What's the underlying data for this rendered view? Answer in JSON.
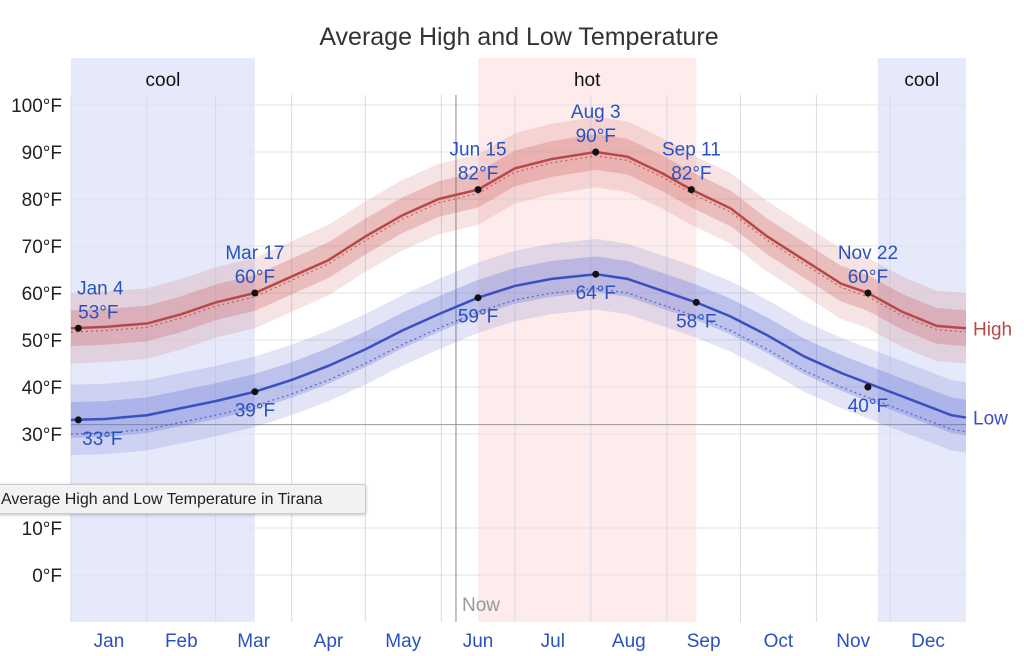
{
  "chart_data": {
    "type": "line",
    "title": "Average High and Low Temperature",
    "x_range_days": [
      1,
      366
    ],
    "ylim": [
      -10,
      110
    ],
    "y_ticks": [
      {
        "value": 100,
        "label": "100°F"
      },
      {
        "value": 90,
        "label": "90°F"
      },
      {
        "value": 80,
        "label": "80°F"
      },
      {
        "value": 70,
        "label": "70°F"
      },
      {
        "value": 60,
        "label": "60°F"
      },
      {
        "value": 50,
        "label": "50°F"
      },
      {
        "value": 40,
        "label": "40°F"
      },
      {
        "value": 30,
        "label": "30°F"
      },
      {
        "value": 10,
        "label": "10°F"
      },
      {
        "value": 0,
        "label": "0°F"
      }
    ],
    "months": [
      "Jan",
      "Feb",
      "Mar",
      "Apr",
      "May",
      "Jun",
      "Jul",
      "Aug",
      "Sep",
      "Oct",
      "Nov",
      "Dec"
    ],
    "seasons": [
      {
        "label": "cool",
        "start_day": 1,
        "end_day": 76,
        "color": "#e6e9fa"
      },
      {
        "label": "hot",
        "start_day": 167,
        "end_day": 256,
        "color": "#fdeceb"
      },
      {
        "label": "cool",
        "start_day": 330,
        "end_day": 366,
        "color": "#e6e9fa"
      }
    ],
    "now_day": 158,
    "now_label": "Now",
    "reference_line": 32,
    "series": [
      {
        "name": "High",
        "color": "#b84848",
        "band_color": "#c85050",
        "points": [
          [
            1,
            52.5
          ],
          [
            15,
            52.8
          ],
          [
            32,
            53.5
          ],
          [
            46,
            55.5
          ],
          [
            60,
            58
          ],
          [
            76,
            60
          ],
          [
            91,
            63.5
          ],
          [
            106,
            67
          ],
          [
            121,
            72
          ],
          [
            136,
            76.5
          ],
          [
            151,
            80
          ],
          [
            167,
            82
          ],
          [
            182,
            86.5
          ],
          [
            197,
            88.5
          ],
          [
            215,
            90
          ],
          [
            228,
            89
          ],
          [
            242,
            85.5
          ],
          [
            254,
            82
          ],
          [
            270,
            78
          ],
          [
            285,
            72
          ],
          [
            300,
            67
          ],
          [
            315,
            62
          ],
          [
            326,
            60
          ],
          [
            340,
            56
          ],
          [
            354,
            53
          ],
          [
            366,
            52.5
          ]
        ]
      },
      {
        "name": "Low",
        "color": "#3b4fc0",
        "band_color": "#5060d0",
        "points": [
          [
            1,
            33
          ],
          [
            15,
            33.2
          ],
          [
            32,
            34
          ],
          [
            46,
            35.5
          ],
          [
            60,
            37
          ],
          [
            76,
            39
          ],
          [
            91,
            41.5
          ],
          [
            106,
            44.5
          ],
          [
            121,
            48
          ],
          [
            136,
            52
          ],
          [
            151,
            55.5
          ],
          [
            167,
            59
          ],
          [
            182,
            61.5
          ],
          [
            197,
            63
          ],
          [
            215,
            64
          ],
          [
            228,
            63
          ],
          [
            242,
            60.5
          ],
          [
            256,
            58
          ],
          [
            270,
            55
          ],
          [
            285,
            51
          ],
          [
            300,
            46.5
          ],
          [
            315,
            43
          ],
          [
            330,
            40
          ],
          [
            345,
            37
          ],
          [
            360,
            34
          ],
          [
            366,
            33.5
          ]
        ]
      }
    ],
    "annotations": [
      {
        "series": "High",
        "day": 4,
        "value": 52.5,
        "date": "Jan 4",
        "temp": "53°F",
        "position": "above"
      },
      {
        "series": "High",
        "day": 76,
        "value": 60,
        "date": "Mar 17",
        "temp": "60°F",
        "position": "above"
      },
      {
        "series": "High",
        "day": 167,
        "value": 82,
        "date": "Jun 15",
        "temp": "82°F",
        "position": "above"
      },
      {
        "series": "High",
        "day": 215,
        "value": 90,
        "date": "Aug 3",
        "temp": "90°F",
        "position": "above"
      },
      {
        "series": "High",
        "day": 254,
        "value": 82,
        "date": "Sep 11",
        "temp": "82°F",
        "position": "above"
      },
      {
        "series": "High",
        "day": 326,
        "value": 60,
        "date": "Nov 22",
        "temp": "60°F",
        "position": "above"
      },
      {
        "series": "Low",
        "day": 4,
        "value": 33,
        "temp": "33°F",
        "position": "below"
      },
      {
        "series": "Low",
        "day": 76,
        "value": 39,
        "temp": "39°F",
        "position": "below"
      },
      {
        "series": "Low",
        "day": 167,
        "value": 59,
        "temp": "59°F",
        "position": "below"
      },
      {
        "series": "Low",
        "day": 215,
        "value": 64,
        "temp": "64°F",
        "position": "below"
      },
      {
        "series": "Low",
        "day": 256,
        "value": 58,
        "temp": "58°F",
        "position": "below"
      },
      {
        "series": "Low",
        "day": 326,
        "value": 40,
        "temp": "40°F",
        "position": "below"
      }
    ]
  },
  "tooltip": {
    "text": "Average High and Low Temperature in Tirana"
  }
}
